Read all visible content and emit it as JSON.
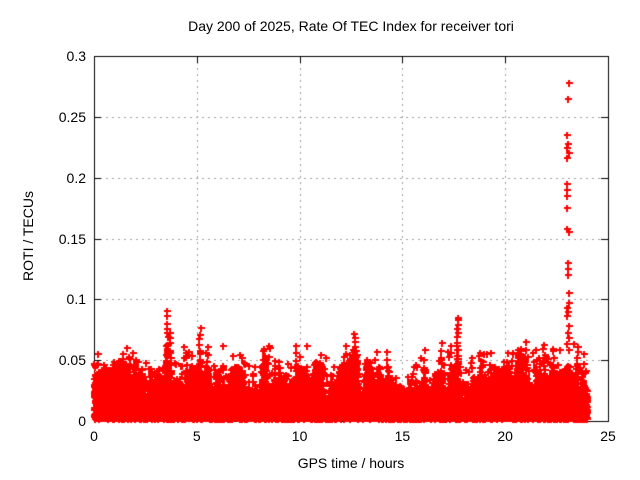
{
  "page": {
    "background": "#ffffff",
    "text_color": "#000000"
  },
  "chart_data": {
    "type": "scatter",
    "title": "Day 200 of 2025, Rate Of TEC Index for receiver tori",
    "xlabel": "GPS time / hours",
    "ylabel": "ROTI / TECUs",
    "xlim": [
      0,
      25
    ],
    "ylim": [
      0,
      0.3
    ],
    "xticks": [
      0,
      5,
      10,
      15,
      20,
      25
    ],
    "yticks": [
      0,
      0.05,
      0.1,
      0.15,
      0.2,
      0.25,
      0.3
    ],
    "grid": true,
    "grid_style": "dashed",
    "grid_color": "#a0a0a0",
    "border_color": "#000000",
    "marker": "plus",
    "marker_color": "#ff0000",
    "data_hours_range": [
      0,
      24
    ],
    "band": {
      "description": "dense noise band of ROTI values; envelope of band top sampled every 0.5 h",
      "floor": 0.002,
      "envelope_step_hours": 0.5,
      "envelope_values": [
        0.04,
        0.034,
        0.036,
        0.04,
        0.045,
        0.035,
        0.032,
        0.042,
        0.038,
        0.042,
        0.04,
        0.042,
        0.036,
        0.034,
        0.038,
        0.03,
        0.04,
        0.042,
        0.036,
        0.03,
        0.04,
        0.034,
        0.038,
        0.034,
        0.038,
        0.044,
        0.038,
        0.04,
        0.038,
        0.032,
        0.028,
        0.032,
        0.038,
        0.036,
        0.04,
        0.044,
        0.038,
        0.034,
        0.04,
        0.038,
        0.042,
        0.04,
        0.046,
        0.042,
        0.044,
        0.042,
        0.046,
        0.044,
        0.04
      ]
    },
    "spike_columns": [
      [
        0.15,
        0.046,
        3
      ],
      [
        1.2,
        0.048,
        3
      ],
      [
        2.05,
        0.051,
        4
      ],
      [
        3.55,
        0.089,
        14
      ],
      [
        3.7,
        0.074,
        8
      ],
      [
        4.5,
        0.057,
        6
      ],
      [
        5.15,
        0.077,
        9
      ],
      [
        5.5,
        0.06,
        6
      ],
      [
        6.25,
        0.06,
        2
      ],
      [
        7.2,
        0.051,
        3
      ],
      [
        8.2,
        0.058,
        5
      ],
      [
        8.8,
        0.05,
        4
      ],
      [
        9.85,
        0.062,
        5
      ],
      [
        10.4,
        0.061,
        1
      ],
      [
        11.0,
        0.048,
        3
      ],
      [
        12.3,
        0.055,
        5
      ],
      [
        12.67,
        0.072,
        10
      ],
      [
        13.3,
        0.05,
        4
      ],
      [
        14.27,
        0.056,
        5
      ],
      [
        15.68,
        0.047,
        1
      ],
      [
        16.07,
        0.058,
        4
      ],
      [
        16.9,
        0.064,
        6
      ],
      [
        17.67,
        0.085,
        16
      ],
      [
        18.83,
        0.057,
        5
      ],
      [
        19.3,
        0.055,
        4
      ],
      [
        20.1,
        0.056,
        5
      ],
      [
        20.6,
        0.052,
        4
      ],
      [
        21.0,
        0.065,
        6
      ],
      [
        21.5,
        0.058,
        4
      ],
      [
        21.9,
        0.062,
        5
      ],
      [
        22.35,
        0.058,
        5
      ],
      [
        23.5,
        0.062,
        6
      ],
      [
        23.8,
        0.055,
        4
      ]
    ],
    "outlier_column": {
      "x": 23.05,
      "values": [
        0.278,
        0.265,
        0.235,
        0.228,
        0.224,
        0.22,
        0.216,
        0.195,
        0.19,
        0.185,
        0.175,
        0.158,
        0.155,
        0.13,
        0.125,
        0.12,
        0.105,
        0.097,
        0.093,
        0.09,
        0.086,
        0.078,
        0.072,
        0.068,
        0.063,
        0.058
      ]
    }
  }
}
